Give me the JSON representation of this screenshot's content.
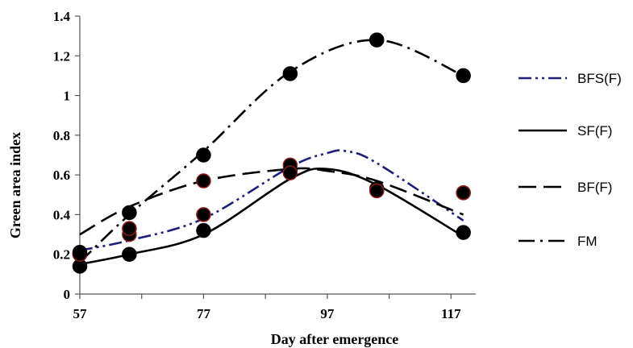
{
  "chart_data": {
    "type": "line",
    "xlabel": "Day after emergence",
    "ylabel": "Green area index",
    "xlim": [
      57,
      121
    ],
    "ylim": [
      0,
      1.4
    ],
    "x_ticks": [
      57,
      77,
      97,
      117
    ],
    "y_ticks": [
      0,
      0.2,
      0.4,
      0.6,
      0.8,
      1,
      1.2,
      1.4
    ],
    "y_tick_labels": [
      "0",
      "0.2",
      "0.4",
      "0.6",
      "0.8",
      "1",
      "1.2",
      "1.4"
    ],
    "legend_position": "right",
    "series": [
      {
        "name": "BFS(F)",
        "color": "#1f1f7a",
        "dash": "dash-dot-dot",
        "curve_x": [
          57,
          65,
          77,
          91,
          97,
          100,
          105,
          119
        ],
        "curve_y": [
          0.22,
          0.27,
          0.38,
          0.64,
          0.71,
          0.72,
          0.66,
          0.37
        ],
        "points_x": [
          57,
          65,
          77,
          91,
          105,
          119
        ],
        "points_y": [
          0.2,
          0.3,
          0.4,
          0.65,
          0.52,
          0.51
        ],
        "marker_ring": "#8b1a1a"
      },
      {
        "name": "SF(F)",
        "color": "#000000",
        "dash": "solid",
        "curve_x": [
          57,
          65,
          77,
          91,
          97,
          105,
          119
        ],
        "curve_y": [
          0.15,
          0.2,
          0.3,
          0.58,
          0.63,
          0.55,
          0.29
        ],
        "points_x": [
          57,
          65,
          77,
          91,
          105,
          119
        ],
        "points_y": [
          0.14,
          0.2,
          0.32,
          0.62,
          0.53,
          0.31
        ],
        "marker_ring": "#000000"
      },
      {
        "name": "BF(F)",
        "color": "#000000",
        "dash": "long-dash",
        "curve_x": [
          57,
          65,
          77,
          91,
          97,
          105,
          119
        ],
        "curve_y": [
          0.3,
          0.44,
          0.57,
          0.63,
          0.62,
          0.57,
          0.4
        ],
        "points_x": [
          57,
          65,
          77,
          91,
          105,
          119
        ],
        "points_y": [
          0.2,
          0.33,
          0.57,
          0.61,
          0.52,
          0.51
        ],
        "marker_ring": "#8b1a1a"
      },
      {
        "name": "FM",
        "color": "#000000",
        "dash": "dash-dot",
        "curve_x": [
          57,
          65,
          77,
          91,
          105,
          119
        ],
        "curve_y": [
          0.16,
          0.4,
          0.72,
          1.12,
          1.28,
          1.1
        ],
        "points_x": [
          57,
          65,
          77,
          91,
          105,
          119
        ],
        "points_y": [
          0.21,
          0.41,
          0.7,
          1.11,
          1.28,
          1.1
        ],
        "marker_ring": "#000000"
      }
    ]
  }
}
